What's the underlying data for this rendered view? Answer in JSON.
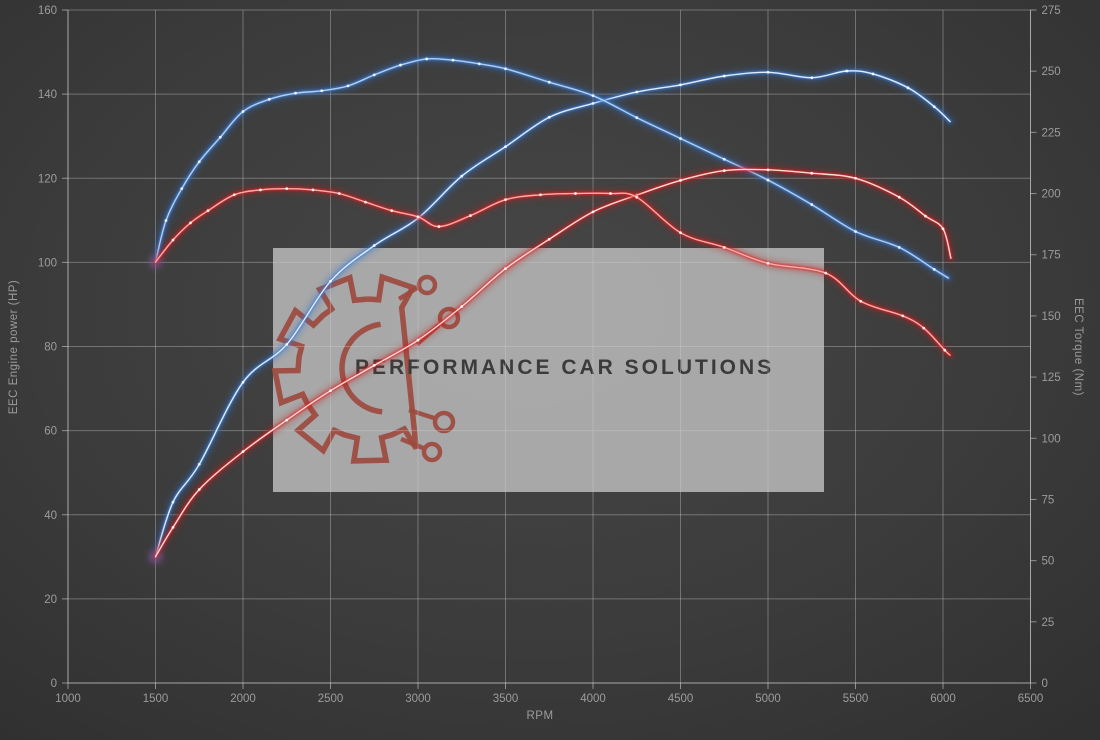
{
  "watermark": {
    "text": "PERFORMANCE CAR SOLUTIONS",
    "box_color": "#b0b0b0",
    "logo_color": "#9d4a3e",
    "text_color": "#3b3b3b"
  },
  "chart_data": {
    "type": "line",
    "title": "",
    "xlabel": "RPM",
    "ylabel_left": "EEC Engine power (HP)",
    "ylabel_right": "EEC Torque (Nm)",
    "grid": true,
    "legend": "none",
    "x_axis": {
      "min": 1000,
      "max": 6500,
      "ticks": [
        1000,
        1500,
        2000,
        2500,
        3000,
        3500,
        4000,
        4500,
        5000,
        5500,
        6000,
        6500
      ]
    },
    "left_axis": {
      "label": "EEC Engine power (HP)",
      "min": 0,
      "max": 160,
      "ticks": [
        0,
        20,
        40,
        60,
        80,
        100,
        120,
        140,
        160
      ]
    },
    "right_axis": {
      "label": "EEC Torque (Nm)",
      "min": 0,
      "max": 275,
      "ticks": [
        0,
        25,
        50,
        75,
        100,
        125,
        150,
        175,
        200,
        225,
        250,
        275
      ]
    },
    "colors": {
      "run1": "#3f83d8",
      "run2": "#e02424",
      "grid": "rgba(205,205,205,0.38)",
      "axis": "rgba(205,205,205,0.6)",
      "tick_text": "#9c9c9c"
    },
    "series": [
      {
        "name": "run1-power-blue",
        "axis": "left",
        "color": "#3f83d8",
        "glow": "#2f6fd0",
        "core": "#e8f1ff",
        "x": [
          1500,
          1600,
          1750,
          2000,
          2250,
          2500,
          2750,
          3000,
          3250,
          3500,
          3750,
          4000,
          4250,
          4500,
          4750,
          5000,
          5250,
          5450,
          5600,
          5800,
          5950,
          6040
        ],
        "values": [
          30,
          43,
          52,
          71.5,
          80.5,
          95.5,
          104,
          110.5,
          120.5,
          127.5,
          134.5,
          137.8,
          140.5,
          142.2,
          144.3,
          145.2,
          143.9,
          145.5,
          144.8,
          141.5,
          137,
          133.5
        ]
      },
      {
        "name": "run1-torque-blue",
        "axis": "right",
        "color": "#3f83d8",
        "glow": "#2f6fd0",
        "core": "#b6d2f5",
        "x": [
          1500,
          1560,
          1650,
          1750,
          1870,
          2000,
          2150,
          2300,
          2450,
          2600,
          2750,
          2900,
          3050,
          3200,
          3350,
          3500,
          3750,
          4000,
          4250,
          4500,
          4750,
          5000,
          5250,
          5500,
          5750,
          5950,
          6030
        ],
        "values": [
          172,
          189,
          202,
          213,
          223,
          233.5,
          238.5,
          241,
          242,
          244,
          248.5,
          252.5,
          255,
          254.5,
          253,
          251,
          245.5,
          240,
          231,
          222.5,
          214,
          205.5,
          195.5,
          184.5,
          178,
          169,
          165.5
        ]
      },
      {
        "name": "run2-power-red",
        "axis": "left",
        "color": "#e02424",
        "glow": "#c01d1d",
        "core": "#ffe3e3",
        "x": [
          1500,
          1600,
          1750,
          2000,
          2250,
          2500,
          2750,
          3000,
          3250,
          3500,
          3750,
          4000,
          4250,
          4500,
          4750,
          5000,
          5250,
          5500,
          5750,
          5900,
          6000,
          6045
        ],
        "values": [
          30,
          37,
          46,
          55,
          62.5,
          69.5,
          75.5,
          81.5,
          89.5,
          98.5,
          105.5,
          112,
          116,
          119.5,
          121.8,
          122,
          121.2,
          120,
          115.5,
          111,
          108,
          101
        ]
      },
      {
        "name": "run2-torque-red",
        "axis": "right",
        "color": "#e02424",
        "glow": "#c01d1d",
        "core": "#ffb3b3",
        "x": [
          1500,
          1600,
          1700,
          1800,
          1950,
          2100,
          2250,
          2400,
          2550,
          2700,
          2850,
          3000,
          3120,
          3300,
          3500,
          3700,
          3900,
          4100,
          4250,
          4500,
          4750,
          5000,
          5330,
          5530,
          5770,
          5890,
          6010,
          6040
        ],
        "values": [
          172,
          181,
          188,
          193,
          199.5,
          201.5,
          202,
          201.5,
          200,
          196.5,
          193,
          190.5,
          186.5,
          191,
          197.5,
          199.5,
          200,
          200,
          198.5,
          184,
          178,
          171.5,
          167.5,
          156,
          150,
          145,
          136,
          134
        ]
      }
    ]
  }
}
